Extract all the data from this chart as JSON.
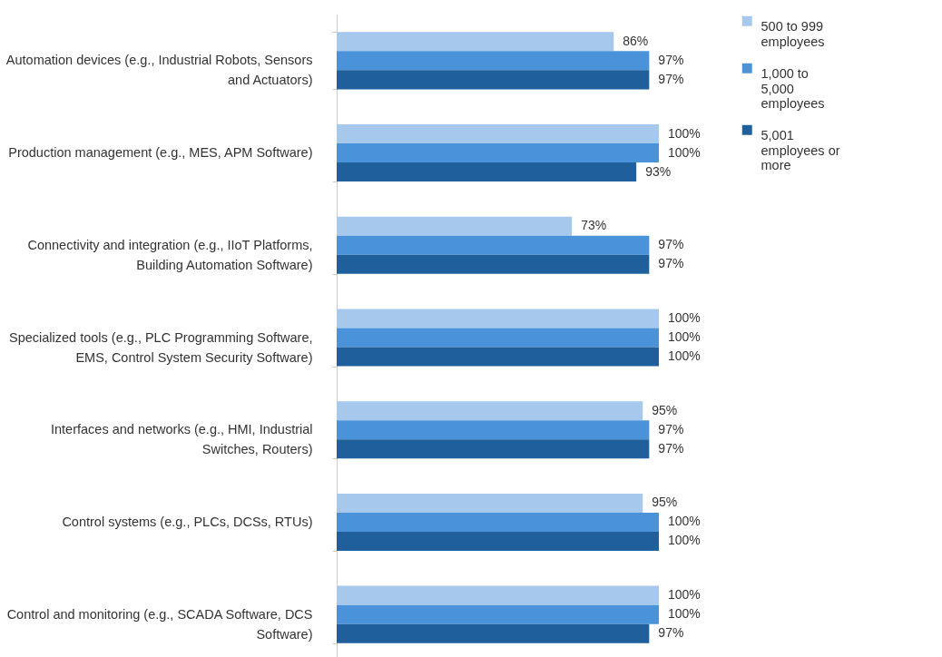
{
  "chart_data": {
    "type": "bar",
    "orientation": "horizontal",
    "categories": [
      "Automation devices (e.g., Industrial Robots, Sensors and Actuators)",
      "Production management (e.g., MES, APM Software)",
      "Connectivity and integration (e.g., IIoT Platforms, Building Automation Software)",
      "Specialized tools (e.g., PLC Programming Software, EMS, Control System Security Software)",
      "Interfaces and networks (e.g., HMI, Industrial Switches, Routers)",
      "Control systems (e.g., PLCs, DCSs, RTUs)",
      "Control and monitoring (e.g., SCADA Software, DCS Software)"
    ],
    "series": [
      {
        "name": "500 to 999 employees",
        "color": "#a6c8ec",
        "values": [
          86,
          100,
          73,
          100,
          95,
          95,
          100
        ],
        "value_labels": [
          "86%",
          "100%",
          "73%",
          "100%",
          "95%",
          "95%",
          "100%"
        ]
      },
      {
        "name": "1,000 to 5,000 employees",
        "color": "#4a93db",
        "values": [
          97,
          100,
          97,
          100,
          97,
          100,
          100
        ],
        "value_labels": [
          "97%",
          "100%",
          "97%",
          "100%",
          "97%",
          "100%",
          "100%"
        ]
      },
      {
        "name": "5,001 employees or more",
        "color": "#1f5f9c",
        "values": [
          97,
          93,
          97,
          100,
          97,
          100,
          97
        ],
        "value_labels": [
          "97%",
          "93%",
          "97%",
          "100%",
          "97%",
          "100%",
          "97%"
        ]
      }
    ],
    "legend": "right",
    "tick_labels": "y",
    "grid": false
  }
}
